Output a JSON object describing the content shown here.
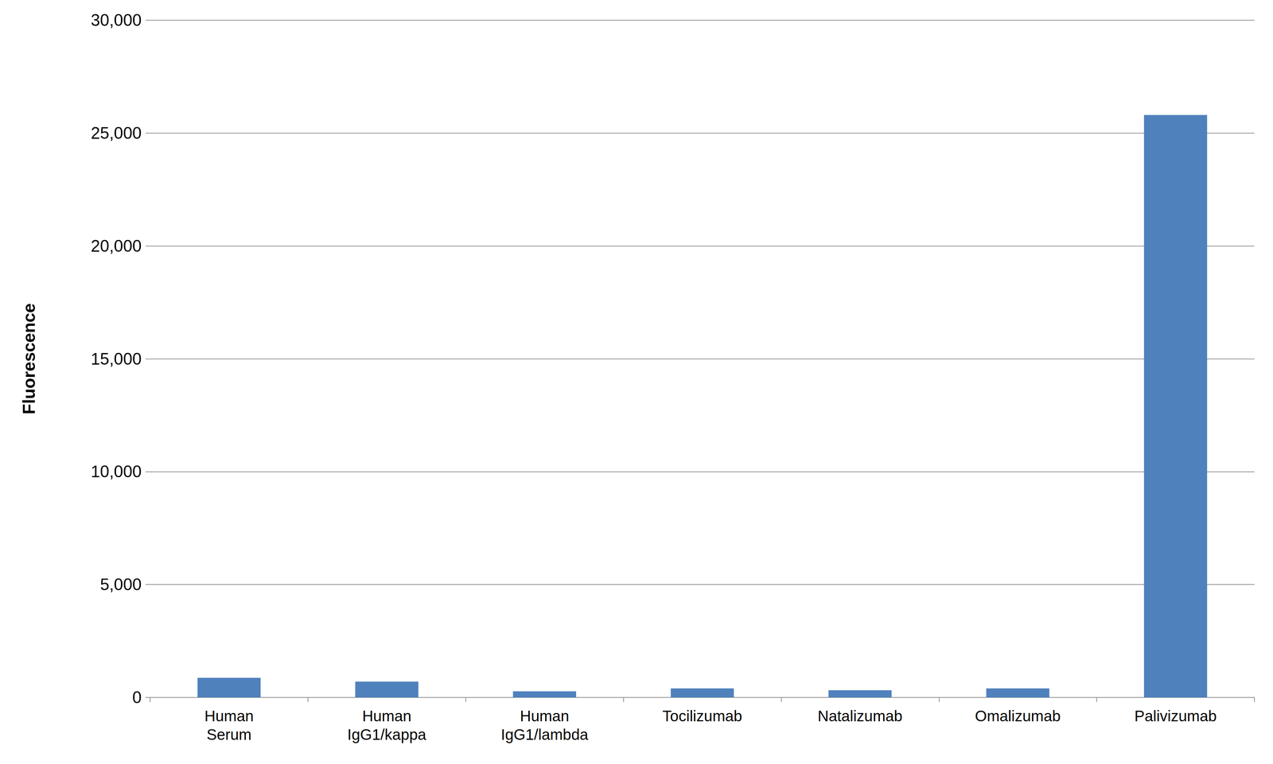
{
  "chart_data": {
    "type": "bar",
    "y_label": "Fluorescence",
    "categories": [
      "Human\nSerum",
      "Human\nIgG1/kappa",
      "Human\nIgG1/lambda",
      "Tocilizumab",
      "Natalizumab",
      "Omalizumab",
      "Palivizumab"
    ],
    "values": [
      870,
      700,
      270,
      400,
      320,
      400,
      25800
    ],
    "color": "#4f81bd",
    "ylim": [
      0,
      30000
    ],
    "yticks": [
      0,
      {
        "value": 5000,
        "label": "5,000"
      },
      {
        "value": 10000,
        "label": "10,000"
      },
      {
        "value": 15000,
        "label": "15,000"
      },
      {
        "value": 20000,
        "label": "20,000"
      },
      {
        "value": 25000,
        "label": "25,000"
      },
      {
        "value": 30000,
        "label": "30,000"
      }
    ],
    "grid": true
  }
}
